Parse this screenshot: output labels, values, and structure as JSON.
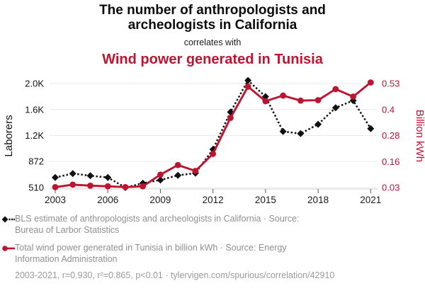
{
  "header": {
    "title_line1": "The number of anthropologists and",
    "title_line2": "archeologists in California",
    "connector": "correlates with",
    "subtitle": "Wind power generated in Tunisia"
  },
  "colors": {
    "accent_red": "#bb1531",
    "series_black": "#111111",
    "legend_gray": "#8f8f8f",
    "gridline": "#e9e9e9",
    "axis_line": "#cfcfcf",
    "tick_mark": "#555555",
    "tick_text": "#1a1a1a"
  },
  "legend": {
    "items": [
      {
        "series": "laborers",
        "line1": "BLS estimate of anthropologists and archeologists in California · Source:",
        "line2": "Bureau of Larbor Statistics"
      },
      {
        "series": "wind",
        "line1": "Total wind power generated in Tunisia in billion kWh · Source: Energy",
        "line2": "Information Administration"
      }
    ],
    "footer": "2003-2021, r=0.930, r²=0.865, p<0.01 · tylervigen.com/spurious/correlation/42910"
  },
  "chart_data": {
    "type": "line",
    "title": "The number of anthropologists and archeologists in California correlates with Wind power generated in Tunisia",
    "x": [
      2003,
      2004,
      2005,
      2006,
      2007,
      2008,
      2009,
      2010,
      2011,
      2012,
      2013,
      2014,
      2015,
      2016,
      2017,
      2018,
      2019,
      2020,
      2021
    ],
    "x_tick_years": [
      2003,
      2006,
      2009,
      2012,
      2015,
      2018,
      2021
    ],
    "left_axis": {
      "label": "Laborers",
      "min": 510,
      "max": 1957,
      "ticks": [
        {
          "v": 510,
          "label": "510"
        },
        {
          "v": 872,
          "label": "872"
        },
        {
          "v": 1233,
          "label": "1.2K"
        },
        {
          "v": 1595,
          "label": "1.6K"
        },
        {
          "v": 1957,
          "label": "2.0K"
        }
      ]
    },
    "right_axis": {
      "label": "Billion kWh",
      "min": 0.03,
      "max": 0.53,
      "ticks": [
        {
          "v": 0.03,
          "label": "0.03"
        },
        {
          "v": 0.155,
          "label": "0.16"
        },
        {
          "v": 0.28,
          "label": "0.28"
        },
        {
          "v": 0.405,
          "label": "0.4"
        },
        {
          "v": 0.53,
          "label": "0.53"
        }
      ]
    },
    "series": [
      {
        "name": "BLS estimate of anthropologists and archeologists in California",
        "axis": "left_axis",
        "style": "dashed",
        "marker": "diamond",
        "color_key": "series_black",
        "values": [
          650,
          705,
          675,
          650,
          510,
          570,
          615,
          680,
          710,
          1040,
          1560,
          2000,
          1775,
          1290,
          1260,
          1390,
          1620,
          1720,
          1330
        ]
      },
      {
        "name": "Total wind power generated in Tunisia in billion kWh",
        "axis": "right_axis",
        "style": "solid",
        "marker": "circle",
        "color_key": "accent_red",
        "values": [
          0.032,
          0.044,
          0.039,
          0.036,
          0.032,
          0.036,
          0.092,
          0.138,
          0.11,
          0.192,
          0.365,
          0.515,
          0.445,
          0.472,
          0.448,
          0.45,
          0.503,
          0.467,
          0.535
        ]
      }
    ],
    "grid": "horizontal",
    "legend_position": "bottom"
  }
}
